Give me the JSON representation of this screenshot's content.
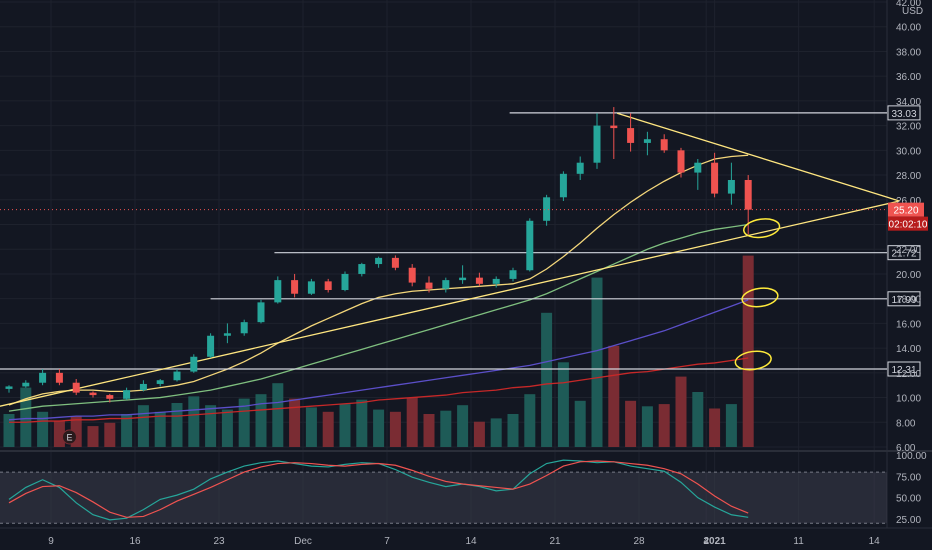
{
  "currency": "USD",
  "colors": {
    "background": "#131722",
    "grid": "#1e222d",
    "up": "#26a69a",
    "down": "#ef5350",
    "vol_up": "#1e5b57",
    "vol_down": "#7a2c33",
    "ma_fast": "#f3d67a",
    "ma_mid": "#7fbf7f",
    "ma_slow": "#5b4fc9",
    "ma_vol": "#c62828",
    "trend": "#ffe680",
    "level": "#d1d4dc",
    "stoch_k": "#26a69a",
    "stoch_d": "#ef5350",
    "stoch_band": "#3a3d4a",
    "price_tag": "#ef5350"
  },
  "chart_data": [
    {
      "type": "candlestick",
      "title": "",
      "price_scale": {
        "ticks": [
          "6.00",
          "8.00",
          "10.00",
          "12.00",
          "14.00",
          "16.00",
          "18.00",
          "20.00",
          "22.00",
          "24.00",
          "26.00",
          "28.00",
          "30.00",
          "32.00",
          "34.00",
          "36.00",
          "38.00",
          "40.00",
          "42.00"
        ],
        "ylim": [
          6,
          42
        ]
      },
      "time_axis": {
        "labels": [
          {
            "text": "9",
            "bar": 2.5,
            "bold": false
          },
          {
            "text": "16",
            "bar": 7.5,
            "bold": false
          },
          {
            "text": "23",
            "bar": 12.5,
            "bold": false
          },
          {
            "text": "Dec",
            "bar": 17.5,
            "bold": false
          },
          {
            "text": "7",
            "bar": 22.5,
            "bold": false
          },
          {
            "text": "14",
            "bar": 27.5,
            "bold": false
          },
          {
            "text": "21",
            "bar": 32.5,
            "bold": false
          },
          {
            "text": "28",
            "bar": 37.5,
            "bold": false
          },
          {
            "text": "4",
            "bar": 41.5,
            "bold": false
          },
          {
            "text": "2021",
            "bar": 42.0,
            "bold": true
          },
          {
            "text": "11",
            "bar": 47.0,
            "bold": false
          },
          {
            "text": "14",
            "bar": 51.5,
            "bold": false
          }
        ],
        "xlim": [
          0,
          53
        ]
      },
      "candles": [
        [
          10.7,
          11.0,
          10.4,
          10.9
        ],
        [
          10.9,
          11.4,
          10.8,
          11.2
        ],
        [
          11.2,
          12.3,
          11.0,
          12.0
        ],
        [
          12.0,
          12.3,
          11.0,
          11.2
        ],
        [
          11.2,
          11.5,
          10.2,
          10.4
        ],
        [
          10.4,
          10.5,
          10.0,
          10.2
        ],
        [
          10.2,
          10.3,
          9.6,
          9.9
        ],
        [
          9.9,
          10.8,
          9.8,
          10.6
        ],
        [
          10.6,
          11.4,
          10.5,
          11.1
        ],
        [
          11.1,
          11.5,
          10.9,
          11.4
        ],
        [
          11.4,
          12.3,
          11.3,
          12.1
        ],
        [
          12.1,
          13.5,
          12.0,
          13.3
        ],
        [
          13.3,
          15.2,
          13.2,
          15.0
        ],
        [
          15.0,
          16.0,
          14.4,
          15.2
        ],
        [
          15.2,
          16.3,
          15.0,
          16.1
        ],
        [
          16.1,
          17.9,
          16.0,
          17.7
        ],
        [
          17.7,
          19.8,
          17.6,
          19.5
        ],
        [
          19.5,
          20.0,
          18.1,
          18.4
        ],
        [
          18.4,
          19.6,
          18.3,
          19.4
        ],
        [
          19.4,
          19.6,
          18.5,
          18.7
        ],
        [
          18.7,
          20.2,
          18.6,
          20.0
        ],
        [
          20.0,
          20.9,
          19.8,
          20.8
        ],
        [
          20.8,
          21.4,
          20.5,
          21.3
        ],
        [
          21.3,
          21.5,
          20.3,
          20.5
        ],
        [
          20.5,
          20.8,
          19.0,
          19.3
        ],
        [
          19.3,
          19.8,
          18.5,
          18.8
        ],
        [
          18.8,
          19.7,
          18.5,
          19.5
        ],
        [
          19.5,
          20.7,
          19.2,
          19.7
        ],
        [
          19.7,
          20.1,
          19.0,
          19.2
        ],
        [
          19.2,
          19.8,
          18.9,
          19.6
        ],
        [
          19.6,
          20.5,
          19.4,
          20.3
        ],
        [
          20.3,
          24.5,
          20.2,
          24.3
        ],
        [
          24.3,
          26.4,
          23.9,
          26.2
        ],
        [
          26.2,
          28.3,
          25.9,
          28.1
        ],
        [
          28.1,
          29.5,
          27.6,
          29.0
        ],
        [
          29.0,
          33.0,
          28.5,
          32.0
        ],
        [
          32.0,
          33.5,
          29.3,
          31.8
        ],
        [
          31.8,
          33.0,
          29.9,
          30.6
        ],
        [
          30.6,
          31.5,
          29.6,
          30.9
        ],
        [
          30.9,
          31.3,
          29.8,
          30.0
        ],
        [
          30.0,
          30.2,
          27.8,
          28.2
        ],
        [
          28.2,
          29.3,
          26.8,
          29.0
        ],
        [
          29.0,
          29.8,
          26.2,
          26.5
        ],
        [
          26.5,
          29.0,
          25.6,
          27.6
        ],
        [
          27.6,
          28.0,
          23.2,
          25.2
        ]
      ],
      "volume": [
        3.0,
        5.4,
        3.2,
        2.4,
        2.8,
        1.9,
        2.2,
        3.0,
        3.8,
        3.2,
        4.0,
        4.6,
        3.8,
        3.4,
        4.4,
        4.8,
        5.8,
        4.4,
        3.6,
        3.2,
        3.9,
        4.3,
        3.4,
        3.2,
        4.5,
        3.0,
        3.3,
        3.8,
        2.3,
        2.6,
        3.0,
        4.8,
        12.2,
        7.7,
        4.2,
        15.4,
        9.2,
        4.2,
        3.7,
        3.9,
        6.4,
        5.0,
        3.5,
        3.9,
        17.4
      ],
      "volume_scale_max": 30,
      "moving_averages": [
        {
          "values": [
            9.4,
            9.9,
            10.3,
            10.5,
            10.6,
            10.6,
            10.5,
            10.5,
            10.6,
            10.8,
            11.0,
            11.3,
            11.8,
            12.3,
            12.9,
            13.6,
            14.4,
            15.1,
            15.8,
            16.4,
            17.0,
            17.6,
            18.1,
            18.4,
            18.6,
            18.7,
            18.8,
            18.9,
            19.0,
            19.1,
            19.2,
            19.6,
            20.4,
            21.4,
            22.5,
            23.7,
            24.8,
            25.8,
            26.7,
            27.5,
            28.2,
            28.8,
            29.3,
            29.5,
            29.6
          ]
        },
        {
          "values": [
            8.9,
            9.1,
            9.3,
            9.4,
            9.5,
            9.6,
            9.7,
            9.8,
            9.9,
            10.0,
            10.2,
            10.4,
            10.6,
            10.9,
            11.2,
            11.5,
            11.9,
            12.3,
            12.7,
            13.1,
            13.5,
            13.9,
            14.3,
            14.7,
            15.1,
            15.5,
            15.9,
            16.3,
            16.7,
            17.1,
            17.5,
            17.9,
            18.4,
            19.0,
            19.6,
            20.2,
            20.8,
            21.4,
            22.0,
            22.5,
            22.9,
            23.3,
            23.6,
            23.8,
            24.0
          ]
        },
        {
          "values": [
            8.2,
            8.3,
            8.3,
            8.4,
            8.5,
            8.5,
            8.6,
            8.6,
            8.7,
            8.8,
            8.9,
            9.0,
            9.1,
            9.2,
            9.3,
            9.5,
            9.6,
            9.8,
            10.0,
            10.2,
            10.4,
            10.6,
            10.8,
            11.0,
            11.2,
            11.4,
            11.6,
            11.8,
            12.0,
            12.2,
            12.4,
            12.6,
            12.9,
            13.2,
            13.5,
            13.8,
            14.2,
            14.6,
            15.0,
            15.4,
            15.9,
            16.4,
            16.9,
            17.4,
            17.9
          ]
        },
        {
          "values": [
            8.0,
            8.0,
            8.1,
            8.1,
            8.2,
            8.2,
            8.3,
            8.3,
            8.4,
            8.5,
            8.5,
            8.6,
            8.7,
            8.8,
            8.9,
            9.0,
            9.1,
            9.2,
            9.3,
            9.4,
            9.5,
            9.6,
            9.8,
            9.9,
            10.0,
            10.1,
            10.2,
            10.4,
            10.5,
            10.6,
            10.8,
            10.9,
            11.1,
            11.2,
            11.4,
            11.6,
            11.8,
            12.0,
            12.1,
            12.3,
            12.5,
            12.7,
            12.8,
            13.0,
            13.2
          ]
        }
      ],
      "horizontal_levels": [
        {
          "label": "33.03",
          "value": 33.03,
          "from_bar": 29.8
        },
        {
          "label": "21.72",
          "value": 21.72,
          "from_bar": 15.8
        },
        {
          "label": "17.99",
          "value": 17.99,
          "from_bar": 12.0
        },
        {
          "label": "12.31",
          "value": 12.31,
          "from_bar": -1
        }
      ],
      "trend_lines": [
        {
          "from": [
            36.2,
            33.0
          ],
          "to": [
            53.0,
            25.9
          ]
        },
        {
          "from": [
            -1,
            9.3
          ],
          "to": [
            53.0,
            25.9
          ]
        }
      ],
      "highlight_ellipses": [
        {
          "bar": 44.8,
          "value": 23.7
        },
        {
          "bar": 44.7,
          "value": 18.1
        },
        {
          "bar": 44.3,
          "value": 13.0
        }
      ],
      "last_price": {
        "label": "25.20",
        "value": 25.2,
        "countdown": "02:02:10"
      },
      "earnings_marker": {
        "label": "E",
        "bar": 3.6
      }
    },
    {
      "type": "line",
      "title": "",
      "ticks": [
        "25.00",
        "50.00",
        "75.00",
        "100.00"
      ],
      "ylim": [
        18,
        100
      ],
      "band": [
        20,
        80
      ],
      "series": [
        {
          "values": [
            48,
            62,
            71,
            62,
            44,
            30,
            24,
            26,
            36,
            48,
            53,
            60,
            72,
            80,
            87,
            91,
            93,
            90,
            87,
            86,
            89,
            91,
            90,
            83,
            74,
            68,
            63,
            66,
            63,
            58,
            60,
            78,
            90,
            94,
            93,
            91,
            92,
            87,
            84,
            81,
            68,
            50,
            39,
            30,
            27
          ]
        },
        {
          "values": [
            44,
            55,
            63,
            64,
            56,
            45,
            33,
            27,
            28,
            36,
            46,
            54,
            62,
            71,
            80,
            86,
            90,
            91,
            90,
            88,
            87,
            89,
            90,
            88,
            82,
            75,
            69,
            66,
            64,
            62,
            60,
            66,
            76,
            87,
            92,
            93,
            92,
            90,
            88,
            84,
            78,
            66,
            52,
            40,
            32
          ]
        }
      ]
    }
  ]
}
